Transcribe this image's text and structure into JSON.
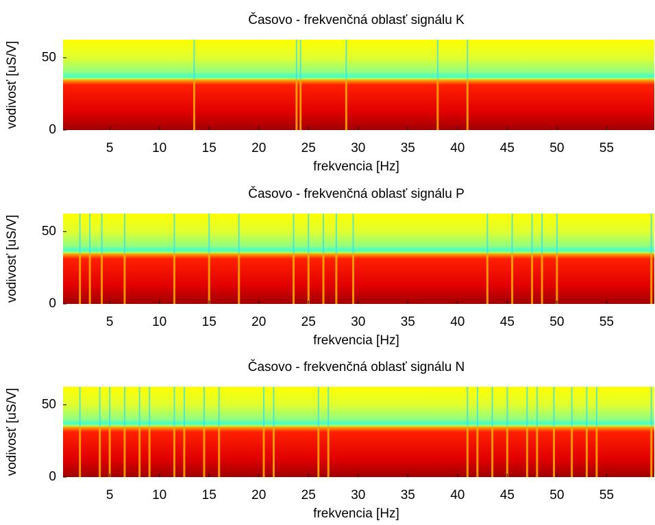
{
  "chart_data": [
    {
      "type": "heatmap",
      "title": "Časovo - frekvenčná oblasť signálu K",
      "xlabel": "frekvencia [Hz]",
      "ylabel": "vodivosť [uS/V]",
      "xlim": [
        0.3,
        59.8
      ],
      "ylim": [
        0,
        62.5
      ],
      "xticks": [
        5,
        10,
        15,
        20,
        25,
        30,
        35,
        40,
        45,
        50,
        55
      ],
      "yticks": [
        0,
        50
      ],
      "stripes": [
        13.5,
        23.8,
        24.2,
        28.8,
        38,
        41
      ]
    },
    {
      "type": "heatmap",
      "title": "Časovo - frekvenčná oblasť signálu P",
      "xlabel": "frekvencia [Hz]",
      "ylabel": "vodivosť [uS/V]",
      "xlim": [
        0.3,
        59.8
      ],
      "ylim": [
        0,
        62.5
      ],
      "xticks": [
        5,
        10,
        15,
        20,
        25,
        30,
        35,
        40,
        45,
        50,
        55
      ],
      "yticks": [
        0,
        50
      ],
      "stripes": [
        2,
        3,
        4.2,
        6.5,
        11.5,
        15,
        18,
        23.5,
        25,
        26.5,
        27.8,
        29.5,
        43,
        45.5,
        47.5,
        48.5,
        50,
        59.5
      ]
    },
    {
      "type": "heatmap",
      "title": "Časovo - frekvenčná oblasť signálu N",
      "xlabel": "frekvencia [Hz]",
      "ylabel": "vodivosť [uS/V]",
      "xlim": [
        0.3,
        59.8
      ],
      "ylim": [
        0,
        62.5
      ],
      "xticks": [
        5,
        10,
        15,
        20,
        25,
        30,
        35,
        40,
        45,
        50,
        55
      ],
      "yticks": [
        0,
        50
      ],
      "stripes": [
        2,
        4,
        5,
        6.5,
        8,
        9,
        11.5,
        12.5,
        14.5,
        16,
        20.5,
        21.5,
        26,
        27,
        41,
        42,
        43.5,
        45,
        47,
        48,
        49.7,
        51.5,
        53,
        54,
        59.5
      ]
    }
  ]
}
